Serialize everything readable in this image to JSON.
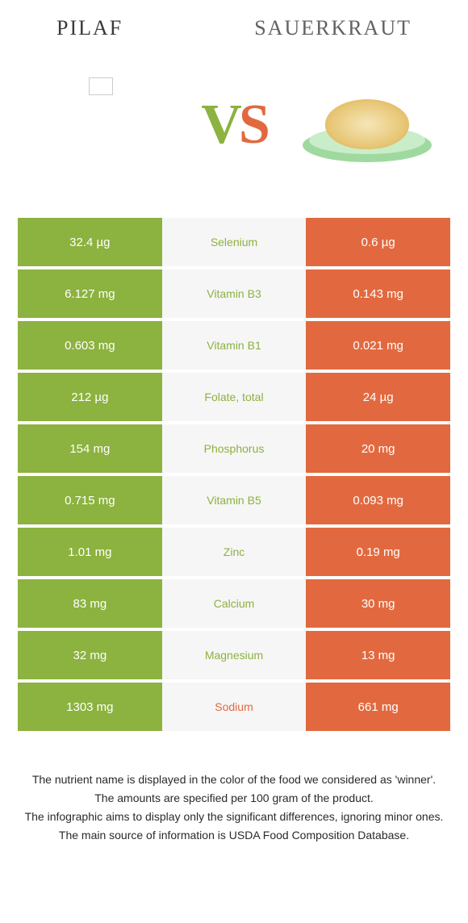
{
  "colors": {
    "left": "#8cb23f",
    "right": "#e2693f",
    "mid_bg": "#f6f6f6",
    "page_bg": "#ffffff"
  },
  "header": {
    "left_title": "Pilaf",
    "right_title": "Sauerkraut"
  },
  "vs": {
    "v": "V",
    "s": "S"
  },
  "rows": [
    {
      "left": "32.4 µg",
      "label": "Selenium",
      "right": "0.6 µg",
      "winner": "left"
    },
    {
      "left": "6.127 mg",
      "label": "Vitamin B3",
      "right": "0.143 mg",
      "winner": "left"
    },
    {
      "left": "0.603 mg",
      "label": "Vitamin B1",
      "right": "0.021 mg",
      "winner": "left"
    },
    {
      "left": "212 µg",
      "label": "Folate, total",
      "right": "24 µg",
      "winner": "left"
    },
    {
      "left": "154 mg",
      "label": "Phosphorus",
      "right": "20 mg",
      "winner": "left"
    },
    {
      "left": "0.715 mg",
      "label": "Vitamin B5",
      "right": "0.093 mg",
      "winner": "left"
    },
    {
      "left": "1.01 mg",
      "label": "Zinc",
      "right": "0.19 mg",
      "winner": "left"
    },
    {
      "left": "83 mg",
      "label": "Calcium",
      "right": "30 mg",
      "winner": "left"
    },
    {
      "left": "32 mg",
      "label": "Magnesium",
      "right": "13 mg",
      "winner": "left"
    },
    {
      "left": "1303 mg",
      "label": "Sodium",
      "right": "661 mg",
      "winner": "right"
    }
  ],
  "notes": {
    "line1": "The nutrient name is displayed in the color of the food we considered as 'winner'.",
    "line2": "The amounts are specified per 100 gram of the product.",
    "line3": "The infographic aims to display only the significant differences, ignoring minor ones.",
    "line4": "The main source of information is USDA Food Composition Database."
  }
}
